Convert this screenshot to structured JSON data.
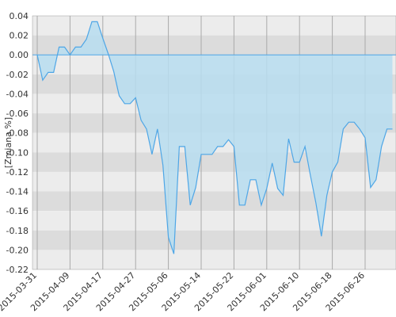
{
  "chart_data": {
    "type": "area",
    "y_label": "[Zmiana %]",
    "categories": [
      "2015-03-31",
      null,
      null,
      null,
      null,
      null,
      "2015-04-09",
      null,
      null,
      null,
      null,
      null,
      "2015-04-17",
      null,
      null,
      null,
      null,
      null,
      "2015-04-27",
      null,
      null,
      null,
      null,
      null,
      "2015-05-06",
      null,
      null,
      null,
      null,
      null,
      "2015-05-14",
      null,
      null,
      null,
      null,
      null,
      "2015-05-22",
      null,
      null,
      null,
      null,
      null,
      "2015-06-01",
      null,
      null,
      null,
      null,
      null,
      "2015-06-10",
      null,
      null,
      null,
      null,
      null,
      "2015-06-18",
      null,
      null,
      null,
      null,
      null,
      "2015-06-26",
      null,
      null,
      null,
      null,
      null
    ],
    "values": [
      0,
      -0.026,
      -0.018,
      -0.018,
      0.008,
      0.008,
      0,
      0.008,
      0.008,
      0.016,
      0.034,
      0.034,
      0.017,
      0.001,
      -0.017,
      -0.042,
      -0.05,
      -0.05,
      -0.044,
      -0.067,
      -0.076,
      -0.102,
      -0.076,
      -0.113,
      -0.187,
      -0.204,
      -0.094,
      -0.094,
      -0.154,
      -0.136,
      -0.102,
      -0.102,
      -0.102,
      -0.094,
      -0.094,
      -0.087,
      -0.094,
      -0.154,
      -0.154,
      -0.128,
      -0.128,
      -0.154,
      -0.137,
      -0.111,
      -0.137,
      -0.144,
      -0.086,
      -0.11,
      -0.11,
      -0.094,
      -0.124,
      -0.152,
      -0.186,
      -0.144,
      -0.12,
      -0.11,
      -0.076,
      -0.069,
      -0.069,
      -0.076,
      -0.085,
      -0.136,
      -0.128,
      -0.094,
      -0.076,
      -0.076
    ],
    "color": "#4ea6e6",
    "fill_color": "#b7ddf0",
    "ylim": [
      -0.22,
      0.04
    ],
    "yticks": [
      0.04,
      0.02,
      {
        "value": 0,
        "label": "0.00"
      },
      -0.02,
      -0.04,
      -0.06,
      -0.08,
      {
        "value": -0.1,
        "label": "-0.10"
      },
      -0.12,
      -0.14,
      -0.16,
      -0.18,
      {
        "value": -0.2,
        "label": "-0.20"
      },
      -0.22
    ],
    "grid": true
  }
}
